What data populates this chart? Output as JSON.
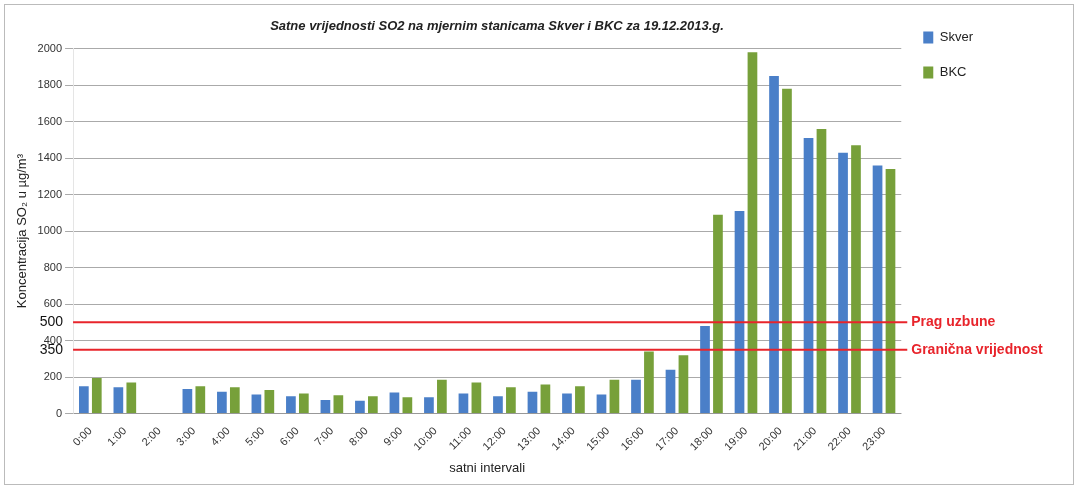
{
  "chart_data": {
    "type": "bar",
    "title": "Satne vrijednosti SO2 na mjernim stanicama Skver i BKC za 19.12.2013.g.",
    "xlabel": "satni intervali",
    "ylabel": "Koncentracija SO₂ u µg/m³",
    "categories": [
      "0:00",
      "1:00",
      "2:00",
      "3:00",
      "4:00",
      "5:00",
      "6:00",
      "7:00",
      "8:00",
      "9:00",
      "10:00",
      "11:00",
      "12:00",
      "13:00",
      "14:00",
      "15:00",
      "16:00",
      "17:00",
      "18:00",
      "19:00",
      "20:00",
      "21:00",
      "22:00",
      "23:00"
    ],
    "series": [
      {
        "name": "Skver",
        "color": "#4a7fc8",
        "values": [
          150,
          145,
          null,
          135,
          120,
          105,
          95,
          75,
          70,
          115,
          90,
          110,
          95,
          120,
          110,
          105,
          185,
          240,
          480,
          1110,
          1850,
          1510,
          1430,
          1360
        ]
      },
      {
        "name": "BKC",
        "color": "#77a03a",
        "values": [
          195,
          170,
          null,
          150,
          145,
          130,
          110,
          100,
          95,
          90,
          185,
          170,
          145,
          160,
          150,
          185,
          340,
          320,
          1090,
          1980,
          1780,
          1560,
          1470,
          1340
        ]
      }
    ],
    "ylim": [
      0,
      2000
    ],
    "yticks": [
      0,
      200,
      400,
      600,
      800,
      1000,
      1200,
      1400,
      1600,
      1800,
      2000
    ],
    "ref_lines": [
      {
        "axis": "y",
        "value": 500,
        "label": "Prag uzbune",
        "color": "#e8242b"
      },
      {
        "axis": "y",
        "value": 350,
        "label": "Granična vrijednost",
        "color": "#e8242b"
      }
    ],
    "annotations": [
      "500",
      "350"
    ],
    "grid": "y",
    "legend": "top right"
  }
}
